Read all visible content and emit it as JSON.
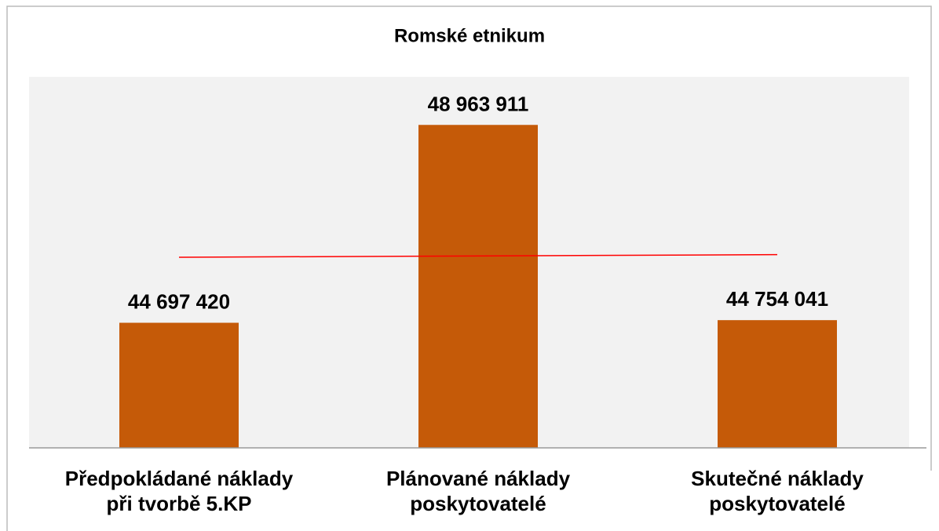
{
  "chart_data": {
    "type": "bar",
    "title": "Romské etnikum",
    "categories": [
      "Předpokládané náklady\npři tvorbě 5.KP",
      "Plánované náklady\nposkytovatelé",
      "Skutečné náklady\nposkytovatelé"
    ],
    "values": [
      44697420,
      48963911,
      44754041
    ],
    "value_labels": [
      "44 697 420",
      "48 963 911",
      "44 754 041"
    ],
    "color": "#c55a08",
    "ylim": [
      42000000,
      50000000
    ],
    "trendline": "linear",
    "trendline_color": "#ff0000"
  }
}
